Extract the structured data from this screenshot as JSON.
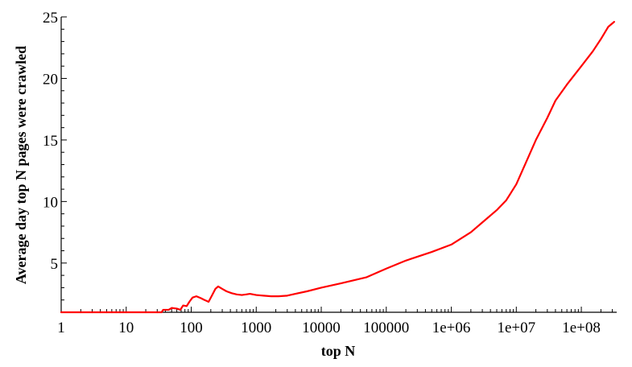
{
  "chart_data": {
    "type": "line",
    "title": "",
    "xlabel": "top N",
    "ylabel": "Average day top N pages were crawled",
    "x_scale": "log",
    "xlim": [
      1,
      350000000
    ],
    "ylim": [
      1,
      25
    ],
    "x_ticks": [
      {
        "value": 1,
        "label": "1"
      },
      {
        "value": 10,
        "label": "10"
      },
      {
        "value": 100,
        "label": "100"
      },
      {
        "value": 1000,
        "label": "1000"
      },
      {
        "value": 10000,
        "label": "10000"
      },
      {
        "value": 100000,
        "label": "100000"
      },
      {
        "value": 1000000,
        "label": "1e+06"
      },
      {
        "value": 10000000,
        "label": "1e+07"
      },
      {
        "value": 100000000,
        "label": "1e+08"
      }
    ],
    "y_ticks": [
      {
        "value": 5,
        "label": "5"
      },
      {
        "value": 10,
        "label": "10"
      },
      {
        "value": 15,
        "label": "15"
      },
      {
        "value": 20,
        "label": "20"
      },
      {
        "value": 25,
        "label": "25"
      }
    ],
    "grid": false,
    "legend": "none",
    "series": [
      {
        "color": "#ff0000",
        "points": [
          [
            1,
            1.0
          ],
          [
            10,
            1.0
          ],
          [
            30,
            1.0
          ],
          [
            35,
            1.0
          ],
          [
            37,
            1.2
          ],
          [
            45,
            1.2
          ],
          [
            50,
            1.35
          ],
          [
            60,
            1.3
          ],
          [
            68,
            1.2
          ],
          [
            75,
            1.55
          ],
          [
            85,
            1.5
          ],
          [
            95,
            1.9
          ],
          [
            105,
            2.2
          ],
          [
            120,
            2.3
          ],
          [
            140,
            2.15
          ],
          [
            160,
            2.0
          ],
          [
            185,
            1.85
          ],
          [
            210,
            2.4
          ],
          [
            235,
            2.9
          ],
          [
            260,
            3.1
          ],
          [
            300,
            2.9
          ],
          [
            350,
            2.7
          ],
          [
            420,
            2.55
          ],
          [
            500,
            2.45
          ],
          [
            600,
            2.4
          ],
          [
            700,
            2.45
          ],
          [
            800,
            2.5
          ],
          [
            1000,
            2.4
          ],
          [
            1300,
            2.35
          ],
          [
            1700,
            2.3
          ],
          [
            2200,
            2.3
          ],
          [
            3000,
            2.35
          ],
          [
            4000,
            2.5
          ],
          [
            6000,
            2.7
          ],
          [
            10000,
            3.0
          ],
          [
            20000,
            3.35
          ],
          [
            50000,
            3.85
          ],
          [
            100000,
            4.55
          ],
          [
            200000,
            5.2
          ],
          [
            500000,
            5.9
          ],
          [
            1000000,
            6.5
          ],
          [
            2000000,
            7.5
          ],
          [
            3000000,
            8.3
          ],
          [
            5000000,
            9.3
          ],
          [
            7000000,
            10.1
          ],
          [
            10000000,
            11.4
          ],
          [
            15000000,
            13.5
          ],
          [
            20000000,
            15.0
          ],
          [
            30000000,
            16.8
          ],
          [
            40000000,
            18.2
          ],
          [
            60000000,
            19.5
          ],
          [
            100000000,
            21.0
          ],
          [
            150000000,
            22.2
          ],
          [
            200000000,
            23.2
          ],
          [
            260000000,
            24.2
          ],
          [
            320000000,
            24.6
          ]
        ]
      }
    ]
  }
}
